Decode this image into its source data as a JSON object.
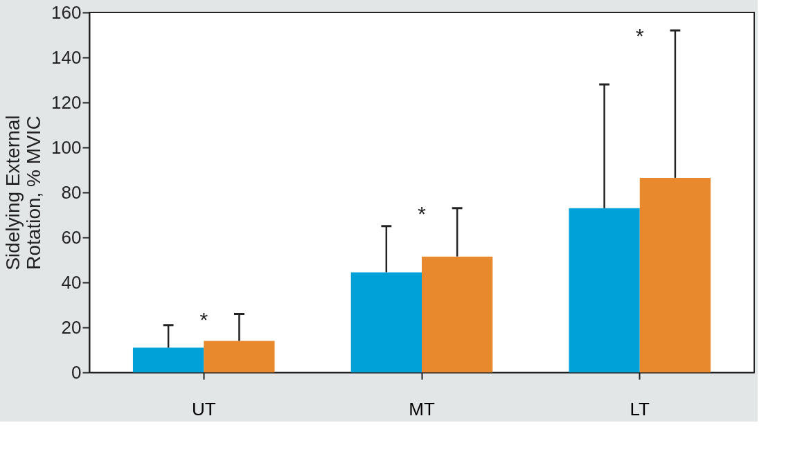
{
  "chart_data": {
    "type": "bar",
    "ylabel": "Sidelying External\nRotation, % MVIC",
    "categories": [
      "UT",
      "MT",
      "LT"
    ],
    "series": [
      {
        "color": "#00a0d8",
        "values": [
          11,
          44.5,
          73
        ],
        "errors": [
          [
            11,
            21
          ],
          [
            44.5,
            65
          ],
          [
            73,
            128
          ]
        ]
      },
      {
        "color": "#e8892e",
        "values": [
          14,
          51.5,
          86.5
        ],
        "errors": [
          [
            14,
            26
          ],
          [
            51.5,
            73
          ],
          [
            86.5,
            152
          ]
        ]
      }
    ],
    "ylim": [
      0,
      160
    ],
    "yticks": [
      0,
      20,
      40,
      60,
      80,
      100,
      120,
      140,
      160
    ],
    "grid": false,
    "legend": false,
    "annotations": [
      "*",
      "*",
      "*"
    ]
  }
}
